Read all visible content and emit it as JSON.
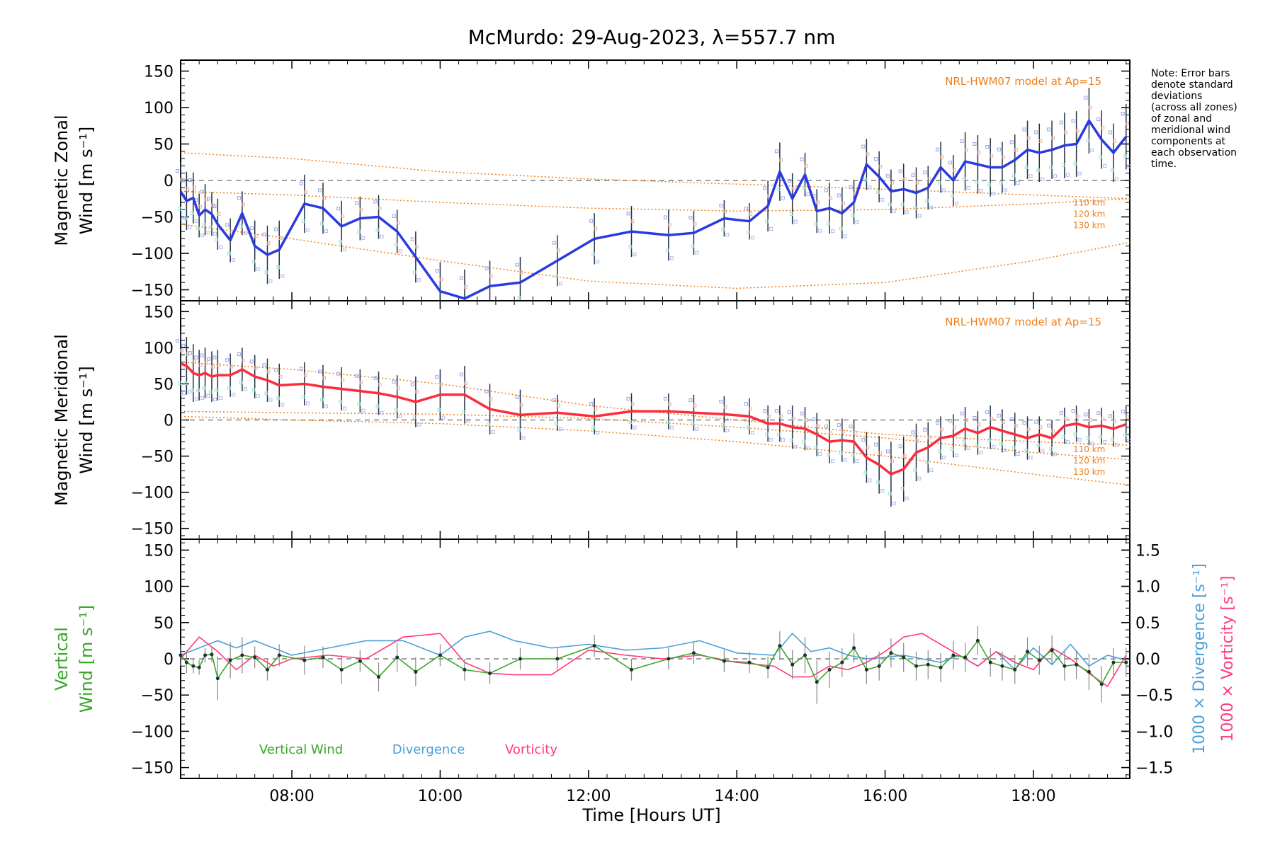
{
  "chart_data": {
    "title": "McMurdo: 29-Aug-2023, λ=557.7 nm",
    "xlabel": "Time [Hours UT]",
    "xlim": [
      6.5,
      19.3
    ],
    "x_ticks": [
      {
        "v": 8,
        "label": "08:00"
      },
      {
        "v": 10,
        "label": "10:00"
      },
      {
        "v": 12,
        "label": "12:00"
      },
      {
        "v": 14,
        "label": "14:00"
      },
      {
        "v": 16,
        "label": "16:00"
      },
      {
        "v": 18,
        "label": "18:00"
      }
    ],
    "y_ticks": [
      150,
      100,
      50,
      0,
      -50,
      -100,
      -150
    ],
    "y_tick_labels": [
      "150",
      "100",
      "50",
      "0",
      "−50",
      "−100",
      "−150"
    ],
    "right_ticks": [
      1.5,
      1.0,
      0.5,
      0.0,
      -0.5,
      -1.0,
      -1.5
    ],
    "right_tick_labels": [
      "1.5",
      "1.0",
      "0.5",
      "0.0",
      "−0.5",
      "−1.0",
      "−1.5"
    ],
    "note": [
      "Note: Error bars",
      "denote standard",
      "deviations",
      "(across all zones)",
      "of zonal and",
      "meridional wind",
      "components at",
      "each observation",
      "time."
    ],
    "colors": {
      "zonal": "#2a3ae0",
      "meridional": "#ff2a3a",
      "model": "#f07f1a",
      "vertical": "#3aa62a",
      "divergence": "#4aa0d8",
      "vorticity": "#ff3a7a",
      "errbar": "#223344"
    },
    "panels": [
      {
        "type": "line",
        "ylabel_line1": "Magnetic Zonal",
        "ylabel_line2": "Wind [m s⁻¹]",
        "ylim": [
          -165,
          165
        ],
        "model_label": "NRL-HWM07 model at Ap=15",
        "alt_labels": [
          "110 km",
          "120 km",
          "130 km"
        ],
        "times": [
          6.5,
          6.58,
          6.67,
          6.75,
          6.83,
          6.92,
          7.0,
          7.17,
          7.33,
          7.5,
          7.67,
          7.83,
          8.17,
          8.42,
          8.67,
          8.92,
          9.17,
          9.42,
          9.67,
          10.0,
          10.33,
          10.67,
          11.08,
          11.58,
          12.08,
          12.58,
          13.08,
          13.42,
          13.83,
          14.17,
          14.42,
          14.58,
          14.75,
          14.92,
          15.08,
          15.25,
          15.42,
          15.58,
          15.75,
          15.92,
          16.08,
          16.25,
          16.42,
          16.58,
          16.75,
          16.92,
          17.08,
          17.25,
          17.42,
          17.58,
          17.75,
          17.92,
          18.08,
          18.25,
          18.42,
          18.58,
          18.75,
          18.92,
          19.08,
          19.25
        ],
        "values": [
          -15,
          -28,
          -24,
          -48,
          -40,
          -46,
          -60,
          -82,
          -45,
          -90,
          -102,
          -95,
          -32,
          -38,
          -63,
          -52,
          -50,
          -70,
          -105,
          -152,
          -162,
          -145,
          -140,
          -110,
          -80,
          -70,
          -75,
          -72,
          -52,
          -56,
          -35,
          12,
          -25,
          8,
          -42,
          -38,
          -45,
          -30,
          22,
          5,
          -15,
          -12,
          -17,
          -10,
          18,
          0,
          26,
          22,
          18,
          18,
          28,
          42,
          38,
          42,
          48,
          50,
          82,
          56,
          38,
          60
        ],
        "errors": [
          40,
          40,
          35,
          30,
          35,
          30,
          35,
          30,
          30,
          35,
          40,
          40,
          40,
          35,
          35,
          30,
          30,
          30,
          35,
          40,
          40,
          35,
          35,
          35,
          35,
          35,
          35,
          30,
          25,
          25,
          35,
          40,
          35,
          30,
          30,
          35,
          35,
          30,
          35,
          35,
          30,
          35,
          35,
          30,
          35,
          35,
          40,
          40,
          40,
          35,
          35,
          40,
          40,
          40,
          45,
          45,
          45,
          40,
          40,
          45
        ],
        "model": [
          {
            "name": "110 km",
            "times": [
              6.5,
              8,
              10,
              12,
              14,
              16,
              18,
              19.3
            ],
            "values": [
              38,
              30,
              12,
              2,
              -5,
              -12,
              -20,
              -25
            ]
          },
          {
            "name": "120 km",
            "times": [
              6.5,
              8,
              10,
              12,
              14,
              16,
              18,
              19.3
            ],
            "values": [
              -15,
              -20,
              -30,
              -38,
              -42,
              -40,
              -32,
              -25
            ]
          },
          {
            "name": "130 km",
            "times": [
              6.5,
              8,
              10,
              12,
              14,
              16,
              18,
              19.3
            ],
            "values": [
              -60,
              -80,
              -110,
              -138,
              -148,
              -140,
              -110,
              -85
            ]
          }
        ]
      },
      {
        "type": "line",
        "ylabel_line1": "Magnetic Meridional",
        "ylabel_line2": "Wind [m s⁻¹]",
        "ylim": [
          -165,
          165
        ],
        "model_label": "NRL-HWM07 model at Ap=15",
        "alt_labels": [
          "110 km",
          "120 km",
          "130 km"
        ],
        "times": [
          6.5,
          6.58,
          6.67,
          6.75,
          6.83,
          6.92,
          7.0,
          7.17,
          7.33,
          7.5,
          7.67,
          7.83,
          8.17,
          8.42,
          8.67,
          8.92,
          9.17,
          9.42,
          9.67,
          10.0,
          10.33,
          10.67,
          11.08,
          11.58,
          12.08,
          12.58,
          13.08,
          13.42,
          13.83,
          14.17,
          14.42,
          14.58,
          14.75,
          14.92,
          15.08,
          15.25,
          15.42,
          15.58,
          15.75,
          15.92,
          16.08,
          16.25,
          16.42,
          16.58,
          16.75,
          16.92,
          17.08,
          17.25,
          17.42,
          17.58,
          17.75,
          17.92,
          18.08,
          18.25,
          18.42,
          18.58,
          18.75,
          18.92,
          19.08,
          19.25
        ],
        "values": [
          78,
          75,
          65,
          62,
          65,
          60,
          62,
          62,
          70,
          60,
          55,
          48,
          50,
          46,
          43,
          40,
          37,
          32,
          25,
          35,
          35,
          15,
          7,
          10,
          5,
          12,
          12,
          10,
          8,
          5,
          -5,
          -5,
          -10,
          -12,
          -20,
          -30,
          -28,
          -30,
          -52,
          -62,
          -75,
          -68,
          -45,
          -38,
          -25,
          -22,
          -12,
          -18,
          -10,
          -15,
          -20,
          -25,
          -20,
          -25,
          -8,
          -5,
          -10,
          -8,
          -12,
          -6
        ],
        "errors": [
          45,
          40,
          40,
          35,
          35,
          35,
          35,
          30,
          30,
          30,
          30,
          30,
          30,
          30,
          30,
          30,
          30,
          30,
          35,
          35,
          40,
          35,
          35,
          25,
          25,
          25,
          25,
          25,
          25,
          25,
          25,
          25,
          30,
          30,
          30,
          30,
          30,
          30,
          35,
          40,
          45,
          45,
          40,
          35,
          30,
          30,
          30,
          30,
          30,
          30,
          30,
          30,
          25,
          25,
          25,
          25,
          25,
          25,
          25,
          25
        ],
        "model": [
          {
            "name": "110 km",
            "times": [
              6.5,
              8,
              10,
              12,
              14,
              16,
              18,
              19.3
            ],
            "values": [
              80,
              70,
              50,
              20,
              0,
              -20,
              -30,
              -35
            ]
          },
          {
            "name": "120 km",
            "times": [
              6.5,
              8,
              10,
              12,
              14,
              16,
              18,
              19.3
            ],
            "values": [
              12,
              10,
              8,
              2,
              -10,
              -25,
              -45,
              -55
            ]
          },
          {
            "name": "130 km",
            "times": [
              6.5,
              8,
              10,
              12,
              14,
              16,
              18,
              19.3
            ],
            "values": [
              5,
              0,
              -5,
              -15,
              -30,
              -50,
              -75,
              -90
            ]
          }
        ]
      },
      {
        "type": "line",
        "ylabel_line1": "Vertical",
        "ylabel_line2": "Wind [m s⁻¹]",
        "right_label_1": "1000 × Divergence [s⁻¹]",
        "right_label_2": "1000 × Vorticity [s⁻¹]",
        "ylim": [
          -165,
          165
        ],
        "right_ylim": [
          -1.65,
          1.65
        ],
        "legend": [
          "Vertical Wind",
          "Divergence",
          "Vorticity"
        ],
        "times": [
          6.5,
          6.58,
          6.67,
          6.75,
          6.83,
          6.92,
          7.0,
          7.17,
          7.33,
          7.5,
          7.67,
          7.83,
          8.17,
          8.42,
          8.67,
          8.92,
          9.17,
          9.42,
          9.67,
          10.0,
          10.33,
          10.67,
          11.08,
          11.58,
          12.08,
          12.58,
          13.08,
          13.42,
          13.83,
          14.17,
          14.42,
          14.58,
          14.75,
          14.92,
          15.08,
          15.25,
          15.42,
          15.58,
          15.75,
          15.92,
          16.08,
          16.25,
          16.42,
          16.58,
          16.75,
          16.92,
          17.08,
          17.25,
          17.42,
          17.58,
          17.75,
          17.92,
          18.08,
          18.25,
          18.42,
          18.58,
          18.75,
          18.92,
          19.08,
          19.25
        ],
        "vertical": [
          5,
          -5,
          -10,
          -12,
          5,
          6,
          -27,
          -2,
          5,
          2,
          -15,
          5,
          -2,
          2,
          -15,
          -3,
          -25,
          2,
          -18,
          5,
          -15,
          -20,
          0,
          0,
          18,
          -15,
          0,
          8,
          -3,
          -5,
          -12,
          18,
          -8,
          5,
          -32,
          -15,
          -5,
          15,
          -15,
          -10,
          8,
          2,
          -10,
          -8,
          -12,
          5,
          2,
          25,
          -5,
          -10,
          -15,
          10,
          -2,
          12,
          -10,
          -8,
          -18,
          -35,
          -5,
          -5
        ],
        "vertical_errors": [
          15,
          15,
          10,
          10,
          10,
          10,
          30,
          25,
          25,
          15,
          15,
          15,
          20,
          15,
          20,
          15,
          20,
          20,
          20,
          15,
          15,
          15,
          15,
          15,
          15,
          15,
          15,
          15,
          15,
          15,
          15,
          20,
          20,
          25,
          30,
          25,
          20,
          20,
          20,
          20,
          20,
          20,
          20,
          20,
          20,
          20,
          20,
          20,
          20,
          20,
          20,
          20,
          20,
          20,
          20,
          20,
          25,
          25,
          20,
          20
        ],
        "divergence_times": [
          6.5,
          6.75,
          7.0,
          7.25,
          7.5,
          7.75,
          8.0,
          8.5,
          9.0,
          9.5,
          10.0,
          10.33,
          10.67,
          11.0,
          11.5,
          12.0,
          12.5,
          13.0,
          13.5,
          14.0,
          14.5,
          14.75,
          15.0,
          15.25,
          15.5,
          15.75,
          16.0,
          16.25,
          16.5,
          16.75,
          17.0,
          17.25,
          17.5,
          17.75,
          18.0,
          18.25,
          18.5,
          18.75,
          19.0,
          19.25
        ],
        "divergence": [
          0.05,
          0.15,
          0.25,
          0.15,
          0.25,
          0.15,
          0.05,
          0.15,
          0.25,
          0.25,
          0.05,
          0.3,
          0.38,
          0.25,
          0.15,
          0.2,
          0.12,
          0.15,
          0.25,
          0.08,
          0.05,
          0.35,
          0.1,
          0.15,
          0.05,
          0.0,
          0.02,
          0.05,
          0.0,
          -0.05,
          0.05,
          -0.1,
          0.1,
          -0.15,
          0.15,
          -0.08,
          0.2,
          -0.1,
          0.05,
          -0.02
        ],
        "vorticity_times": [
          6.5,
          6.75,
          7.0,
          7.25,
          7.5,
          7.75,
          8.0,
          8.5,
          9.0,
          9.5,
          10.0,
          10.33,
          10.67,
          11.0,
          11.5,
          12.0,
          12.5,
          13.0,
          13.5,
          14.0,
          14.5,
          14.75,
          15.0,
          15.25,
          15.5,
          15.75,
          16.0,
          16.25,
          16.5,
          16.75,
          17.0,
          17.25,
          17.5,
          17.75,
          18.0,
          18.25,
          18.5,
          18.75,
          19.0,
          19.25
        ],
        "vorticity": [
          0.0,
          0.3,
          0.1,
          -0.15,
          0.05,
          -0.1,
          0.0,
          0.05,
          0.0,
          0.3,
          0.35,
          -0.05,
          -0.2,
          -0.22,
          -0.22,
          0.12,
          0.05,
          0.0,
          0.05,
          -0.05,
          -0.1,
          -0.25,
          -0.25,
          -0.1,
          -0.15,
          -0.05,
          0.1,
          0.3,
          0.35,
          0.2,
          0.05,
          -0.1,
          0.1,
          -0.05,
          -0.15,
          0.15,
          0.0,
          -0.2,
          -0.38,
          0.05
        ]
      }
    ]
  }
}
